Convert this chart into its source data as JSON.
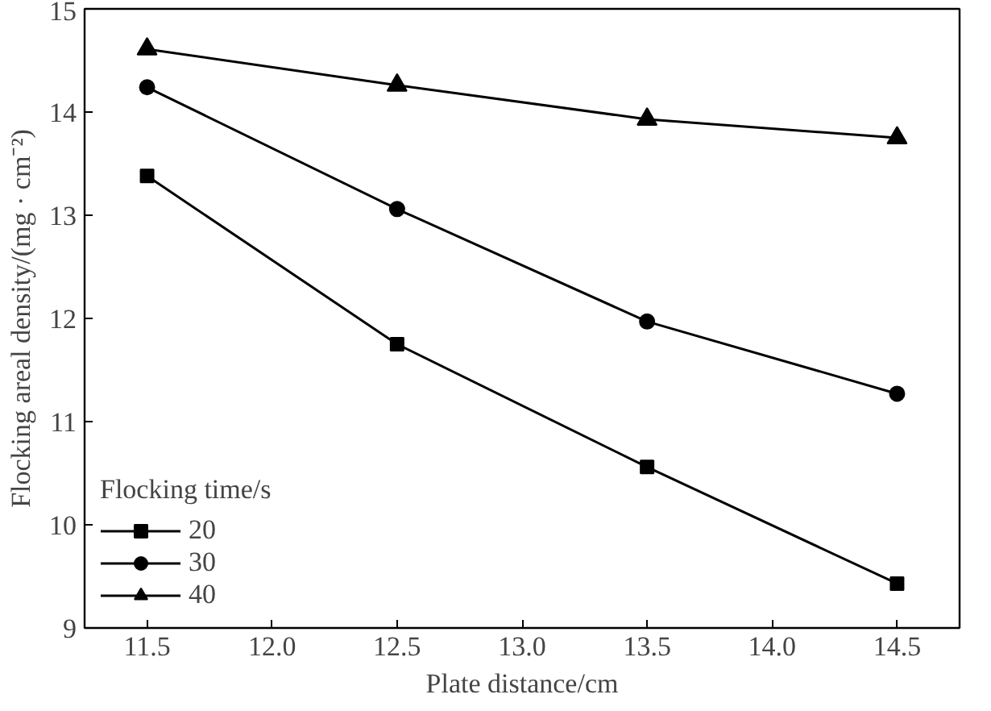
{
  "chart_data": {
    "type": "line",
    "xlabel": "Plate distance/cm",
    "ylabel": "Flocking areal density/(mg · cm⁻²)",
    "x": [
      11.5,
      12.5,
      13.5,
      14.5
    ],
    "series": [
      {
        "name": "20",
        "color": "#000000",
        "marker": "square",
        "values": [
          13.38,
          11.75,
          10.56,
          9.43
        ]
      },
      {
        "name": "30",
        "color": "#000000",
        "marker": "circle",
        "values": [
          14.24,
          13.06,
          11.97,
          11.27
        ]
      },
      {
        "name": "40",
        "color": "#000000",
        "marker": "triangle",
        "values": [
          14.61,
          14.26,
          13.93,
          13.75
        ]
      }
    ],
    "legend_title": "Flocking time/s",
    "legend": "bottom left",
    "xlim": [
      11.25,
      14.75
    ],
    "xticks": [
      {
        "value": 11.5,
        "label": "11.5"
      },
      {
        "value": 12.0,
        "label": "12.0"
      },
      {
        "value": 12.5,
        "label": "12.5"
      },
      {
        "value": 13.0,
        "label": "13.0"
      },
      {
        "value": 13.5,
        "label": "13.5"
      },
      {
        "value": 14.0,
        "label": "14.0"
      },
      {
        "value": 14.5,
        "label": "14.5"
      }
    ],
    "ylim": [
      9,
      15
    ],
    "yticks": [
      9,
      10,
      11,
      12,
      13,
      14,
      15
    ],
    "grid": false,
    "line_style": "solid"
  }
}
